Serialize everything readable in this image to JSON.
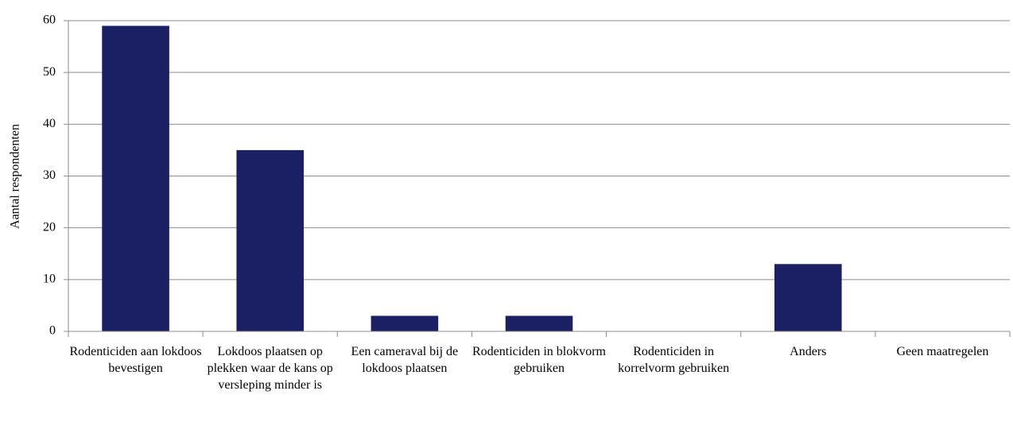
{
  "chart_data": {
    "type": "bar",
    "y_label": "Aantal respondenten",
    "categories": [
      "Rodenticiden aan lokdoos bevestigen",
      "Lokdoos plaatsen op plekken waar de kans op versleping minder is",
      "Een cameraval bij de lokdoos plaatsen",
      "Rodenticiden in blokvorm gebruiken",
      "Rodenticiden in korrelvorm gebruiken",
      "Anders",
      "Geen maatregelen"
    ],
    "values": [
      59,
      35,
      3,
      3,
      0,
      13,
      0
    ],
    "color": "#1b1f63",
    "ylim": [
      0,
      60
    ],
    "yticks": [
      0,
      10,
      20,
      30,
      40,
      50,
      60
    ],
    "grid": true
  }
}
